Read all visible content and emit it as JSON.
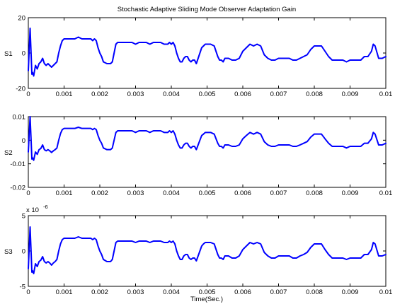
{
  "chart_data": [
    {
      "type": "line",
      "title": "Stochastic Adaptive Sliding Mode Observer Adaptation Gain",
      "xlabel": "",
      "ylabel": "S1",
      "xlim": [
        0,
        0.01
      ],
      "ylim": [
        -20,
        20
      ],
      "xticks": [
        "0",
        "0.001",
        "0.002",
        "0.003",
        "0.004",
        "0.005",
        "0.006",
        "0.007",
        "0.008",
        "0.009",
        "0.01"
      ],
      "yticks": [
        "-20",
        "0",
        "20"
      ],
      "y_multiplier": "",
      "grid": false,
      "series": [
        {
          "color": "#0000ff",
          "x": [
            0,
            5e-05,
            0.0001,
            0.00012,
            0.00015,
            0.0002,
            0.00025,
            0.0003,
            0.00035,
            0.0004,
            0.00045,
            0.0005,
            0.00055,
            0.0006,
            0.00065,
            0.0007,
            0.00075,
            0.0008,
            0.00085,
            0.0009,
            0.00095,
            0.001,
            0.00105,
            0.0011,
            0.0012,
            0.0013,
            0.0014,
            0.0015,
            0.0016,
            0.0017,
            0.00175,
            0.0018,
            0.00185,
            0.0019,
            0.00195,
            0.002,
            0.00205,
            0.0021,
            0.0022,
            0.0023,
            0.00235,
            0.0024,
            0.00245,
            0.0025,
            0.0026,
            0.0027,
            0.0028,
            0.0029,
            0.003,
            0.0031,
            0.0032,
            0.0033,
            0.0034,
            0.0035,
            0.0036,
            0.0037,
            0.0038,
            0.0039,
            0.00395,
            0.004,
            0.00405,
            0.0041,
            0.00415,
            0.0042,
            0.00425,
            0.0043,
            0.00435,
            0.0044,
            0.00445,
            0.0045,
            0.00455,
            0.0046,
            0.00465,
            0.0047,
            0.00475,
            0.0048,
            0.00485,
            0.0049,
            0.00495,
            0.005,
            0.0051,
            0.0052,
            0.0053,
            0.00535,
            0.0054,
            0.00545,
            0.0055,
            0.0056,
            0.0057,
            0.0058,
            0.0059,
            0.006,
            0.0061,
            0.0062,
            0.0063,
            0.0064,
            0.0065,
            0.0066,
            0.0067,
            0.0068,
            0.0069,
            0.007,
            0.0071,
            0.0072,
            0.0073,
            0.0074,
            0.0075,
            0.0076,
            0.0077,
            0.0078,
            0.0079,
            0.008,
            0.0081,
            0.0082,
            0.0083,
            0.0084,
            0.0085,
            0.0086,
            0.0087,
            0.0088,
            0.0089,
            0.009,
            0.0091,
            0.0092,
            0.0093,
            0.0094,
            0.0095,
            0.0096,
            0.00965,
            0.0097,
            0.0098,
            0.0099,
            0.01
          ],
          "y": [
            -10,
            14,
            -12,
            -11,
            -13,
            -7,
            -9,
            -6,
            -5,
            -3,
            -6,
            -7,
            -6,
            -7,
            -8,
            -7,
            -6,
            -5,
            0,
            4,
            7,
            8,
            8,
            8,
            8,
            8,
            9,
            8,
            8,
            8,
            8,
            7,
            8,
            7,
            3,
            0,
            -2,
            -5,
            -6,
            -6,
            -5,
            0,
            5,
            6,
            6,
            6,
            6,
            6,
            5,
            6,
            6,
            6,
            5,
            6,
            6,
            6,
            5,
            5,
            6,
            5,
            6,
            4,
            0,
            -3,
            -5,
            -5,
            -3,
            -2,
            -2,
            -4,
            -5,
            -4,
            -4,
            -6,
            -3,
            0,
            3,
            4,
            5,
            5,
            5,
            4,
            -2,
            -4,
            -4,
            -5,
            -3,
            -3,
            -4,
            -4,
            -3,
            1,
            3,
            5,
            4,
            5,
            4,
            -1,
            -3,
            -4,
            -4,
            -3,
            -3,
            -3,
            -3,
            -4,
            -4,
            -3,
            -2,
            -1,
            2,
            4,
            4,
            4,
            1,
            -2,
            -4,
            -4,
            -4,
            -4,
            -5,
            -4,
            -4,
            -4,
            -4,
            -2,
            -2,
            1,
            5,
            4,
            -3,
            -3,
            -2
          ]
        }
      ]
    },
    {
      "type": "line",
      "title": "",
      "xlabel": "",
      "ylabel": "S2",
      "xlim": [
        0,
        0.01
      ],
      "ylim": [
        -0.02,
        0.01
      ],
      "xticks": [
        "0",
        "0.001",
        "0.002",
        "0.003",
        "0.004",
        "0.005",
        "0.006",
        "0.007",
        "0.008",
        "0.009",
        "0.01"
      ],
      "yticks": [
        "-0.02",
        "-0.01",
        "0",
        "0.01"
      ],
      "y_multiplier": "",
      "grid": false,
      "series": [
        {
          "color": "#0000ff",
          "x": [
            0,
            5e-05,
            0.0001,
            0.00012,
            0.00015,
            0.0002,
            0.00025,
            0.0003,
            0.00035,
            0.0004,
            0.00045,
            0.0005,
            0.00055,
            0.0006,
            0.00065,
            0.0007,
            0.00075,
            0.0008,
            0.00085,
            0.0009,
            0.00095,
            0.001,
            0.00105,
            0.0011,
            0.0012,
            0.0013,
            0.0014,
            0.0015,
            0.0016,
            0.0017,
            0.00175,
            0.0018,
            0.00185,
            0.0019,
            0.00195,
            0.002,
            0.00205,
            0.0021,
            0.0022,
            0.0023,
            0.00235,
            0.0024,
            0.00245,
            0.0025,
            0.0026,
            0.0027,
            0.0028,
            0.0029,
            0.003,
            0.0031,
            0.0032,
            0.0033,
            0.0034,
            0.0035,
            0.0036,
            0.0037,
            0.0038,
            0.0039,
            0.00395,
            0.004,
            0.00405,
            0.0041,
            0.00415,
            0.0042,
            0.00425,
            0.0043,
            0.00435,
            0.0044,
            0.00445,
            0.0045,
            0.00455,
            0.0046,
            0.00465,
            0.0047,
            0.00475,
            0.0048,
            0.00485,
            0.0049,
            0.00495,
            0.005,
            0.0051,
            0.0052,
            0.0053,
            0.00535,
            0.0054,
            0.00545,
            0.0055,
            0.0056,
            0.0057,
            0.0058,
            0.0059,
            0.006,
            0.0061,
            0.0062,
            0.0063,
            0.0064,
            0.0065,
            0.0066,
            0.0067,
            0.0068,
            0.0069,
            0.007,
            0.0071,
            0.0072,
            0.0073,
            0.0074,
            0.0075,
            0.0076,
            0.0077,
            0.0078,
            0.0079,
            0.008,
            0.0081,
            0.0082,
            0.0083,
            0.0084,
            0.0085,
            0.0086,
            0.0087,
            0.0088,
            0.0089,
            0.009,
            0.0091,
            0.0092,
            0.0093,
            0.0094,
            0.0095,
            0.0096,
            0.00965,
            0.0097,
            0.0098,
            0.0099,
            0.01
          ],
          "y": [
            -0.005,
            0.01,
            -0.008,
            -0.0075,
            -0.0085,
            -0.005,
            -0.006,
            -0.004,
            -0.0035,
            -0.002,
            -0.004,
            -0.0045,
            -0.004,
            -0.0045,
            -0.0052,
            -0.0045,
            -0.004,
            -0.0033,
            0,
            0.0028,
            0.0045,
            0.005,
            0.005,
            0.005,
            0.005,
            0.005,
            0.0055,
            0.005,
            0.005,
            0.005,
            0.005,
            0.0045,
            0.005,
            0.0045,
            0.002,
            0,
            -0.0013,
            -0.0033,
            -0.004,
            -0.004,
            -0.0033,
            0,
            0.0033,
            0.004,
            0.004,
            0.004,
            0.004,
            0.004,
            0.0033,
            0.004,
            0.004,
            0.004,
            0.0033,
            0.004,
            0.004,
            0.004,
            0.0033,
            0.0033,
            0.004,
            0.0033,
            0.004,
            0.0026,
            0,
            -0.002,
            -0.0033,
            -0.0033,
            -0.002,
            -0.0013,
            -0.0013,
            -0.0026,
            -0.0033,
            -0.0026,
            -0.0026,
            -0.004,
            -0.002,
            0,
            0.002,
            0.0026,
            0.0033,
            0.0033,
            0.0033,
            0.0026,
            -0.0013,
            -0.0026,
            -0.0026,
            -0.0033,
            -0.002,
            -0.002,
            -0.0026,
            -0.0026,
            -0.002,
            0.0006,
            0.002,
            0.0033,
            0.0026,
            0.0033,
            0.0026,
            -0.0006,
            -0.002,
            -0.0026,
            -0.0026,
            -0.002,
            -0.002,
            -0.002,
            -0.002,
            -0.0026,
            -0.0026,
            -0.002,
            -0.0013,
            -0.0006,
            0.0013,
            0.0026,
            0.0026,
            0.0026,
            0.0006,
            -0.0013,
            -0.0026,
            -0.0026,
            -0.0026,
            -0.0026,
            -0.0033,
            -0.0026,
            -0.0026,
            -0.0026,
            -0.0026,
            -0.0013,
            -0.0013,
            0.0006,
            0.0033,
            0.0026,
            -0.002,
            -0.002,
            -0.0013
          ]
        }
      ]
    },
    {
      "type": "line",
      "title": "",
      "xlabel": "Time(Sec.)",
      "ylabel": "S3",
      "xlim": [
        0,
        0.01
      ],
      "ylim": [
        -5,
        5
      ],
      "xticks": [
        "0",
        "0.001",
        "0.002",
        "0.003",
        "0.004",
        "0.005",
        "0.006",
        "0.007",
        "0.008",
        "0.009",
        "0.01"
      ],
      "yticks": [
        "-5",
        "0",
        "5"
      ],
      "y_multiplier": "x 10",
      "y_multiplier_exp": "-6",
      "grid": false,
      "series": [
        {
          "color": "#0000ff",
          "x": [
            0,
            5e-05,
            0.0001,
            0.00012,
            0.00015,
            0.0002,
            0.00025,
            0.0003,
            0.00035,
            0.0004,
            0.00045,
            0.0005,
            0.00055,
            0.0006,
            0.00065,
            0.0007,
            0.00075,
            0.0008,
            0.00085,
            0.0009,
            0.00095,
            0.001,
            0.00105,
            0.0011,
            0.0012,
            0.0013,
            0.0014,
            0.0015,
            0.0016,
            0.0017,
            0.00175,
            0.0018,
            0.00185,
            0.0019,
            0.00195,
            0.002,
            0.00205,
            0.0021,
            0.0022,
            0.0023,
            0.00235,
            0.0024,
            0.00245,
            0.0025,
            0.0026,
            0.0027,
            0.0028,
            0.0029,
            0.003,
            0.0031,
            0.0032,
            0.0033,
            0.0034,
            0.0035,
            0.0036,
            0.0037,
            0.0038,
            0.0039,
            0.00395,
            0.004,
            0.00405,
            0.0041,
            0.00415,
            0.0042,
            0.00425,
            0.0043,
            0.00435,
            0.0044,
            0.00445,
            0.0045,
            0.00455,
            0.0046,
            0.00465,
            0.0047,
            0.00475,
            0.0048,
            0.00485,
            0.0049,
            0.00495,
            0.005,
            0.0051,
            0.0052,
            0.0053,
            0.00535,
            0.0054,
            0.00545,
            0.0055,
            0.0056,
            0.0057,
            0.0058,
            0.0059,
            0.006,
            0.0061,
            0.0062,
            0.0063,
            0.0064,
            0.0065,
            0.0066,
            0.0067,
            0.0068,
            0.0069,
            0.007,
            0.0071,
            0.0072,
            0.0073,
            0.0074,
            0.0075,
            0.0076,
            0.0077,
            0.0078,
            0.0079,
            0.008,
            0.0081,
            0.0082,
            0.0083,
            0.0084,
            0.0085,
            0.0086,
            0.0087,
            0.0088,
            0.0089,
            0.009,
            0.0091,
            0.0092,
            0.0093,
            0.0094,
            0.0095,
            0.0096,
            0.00965,
            0.0097,
            0.0098,
            0.0099,
            0.01
          ],
          "y": [
            -2.5,
            3.4,
            -3.0,
            -2.8,
            -3.2,
            -1.8,
            -2.2,
            -1.5,
            -1.3,
            -0.8,
            -1.5,
            -1.7,
            -1.5,
            -1.7,
            -2.0,
            -1.7,
            -1.5,
            -1.2,
            0,
            1.0,
            1.6,
            1.8,
            1.8,
            1.8,
            1.8,
            1.8,
            2.0,
            1.8,
            1.8,
            1.8,
            1.8,
            1.6,
            1.8,
            1.6,
            0.7,
            0,
            -0.5,
            -1.2,
            -1.5,
            -1.5,
            -1.2,
            0,
            1.2,
            1.4,
            1.4,
            1.4,
            1.4,
            1.4,
            1.2,
            1.4,
            1.4,
            1.4,
            1.2,
            1.4,
            1.4,
            1.4,
            1.2,
            1.2,
            1.4,
            1.2,
            1.4,
            1.0,
            0,
            -0.7,
            -1.2,
            -1.2,
            -0.7,
            -0.5,
            -0.5,
            -1.0,
            -1.2,
            -1.0,
            -1.0,
            -1.4,
            -0.7,
            0,
            0.7,
            1.0,
            1.2,
            1.2,
            1.2,
            1.0,
            -0.5,
            -1.0,
            -1.0,
            -1.2,
            -0.7,
            -0.7,
            -1.0,
            -1.0,
            -0.7,
            0.2,
            0.7,
            1.2,
            1.0,
            1.2,
            1.0,
            -0.2,
            -0.7,
            -1.0,
            -1.0,
            -0.7,
            -0.7,
            -0.7,
            -0.7,
            -1.0,
            -1.0,
            -0.7,
            -0.5,
            -0.2,
            0.5,
            1.0,
            1.0,
            1.0,
            0.2,
            -0.5,
            -1.0,
            -1.0,
            -1.0,
            -1.0,
            -1.2,
            -1.0,
            -1.0,
            -1.0,
            -1.0,
            -0.5,
            -0.5,
            0.2,
            1.2,
            1.0,
            -0.7,
            -0.7,
            -0.5
          ]
        }
      ]
    }
  ]
}
